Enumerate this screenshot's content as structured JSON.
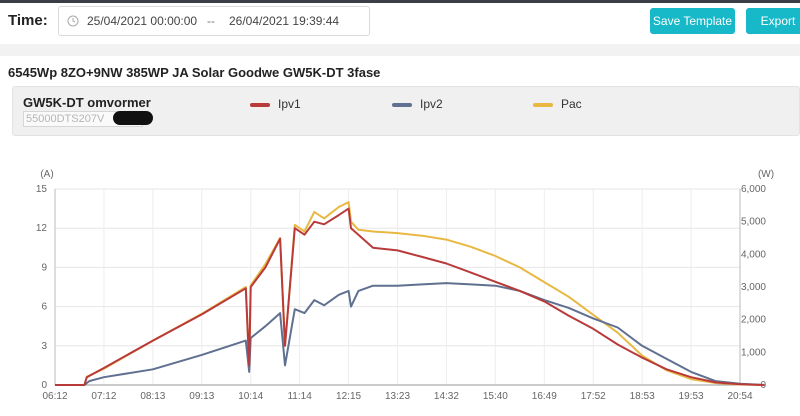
{
  "toolbar": {
    "time_label": "Time:",
    "date_start": "25/04/2021 00:00:00",
    "date_separator": "--",
    "date_end": "26/04/2021 19:39:44",
    "save_template_label": "Save Template",
    "export_label": "Export",
    "accent_color": "#17b8c8"
  },
  "plant_title": "6545Wp 8ZO+9NW 385WP JA Solar Goodwe GW5K-DT 3fase",
  "device": {
    "name": "GW5K-DT omvormer",
    "serial_visible": "55000DTS207V"
  },
  "chart_data": {
    "type": "line",
    "left_unit": "(A)",
    "right_unit": "(W)",
    "x_ticks": [
      "06:12",
      "07:12",
      "08:13",
      "09:13",
      "10:14",
      "11:14",
      "12:15",
      "13:23",
      "14:32",
      "15:40",
      "16:49",
      "17:52",
      "18:53",
      "19:53",
      "20:54"
    ],
    "y_left_ticks": [
      "0",
      "3",
      "6",
      "9",
      "12",
      "15"
    ],
    "y_right_ticks": [
      "0",
      "1,000",
      "2,000",
      "3,000",
      "4,000",
      "5,000",
      "6,000"
    ],
    "ylim_left": [
      0,
      15
    ],
    "ylim_right": [
      0,
      6000
    ],
    "grid": true,
    "legend_position": "top",
    "series": [
      {
        "name": "Ipv1",
        "axis": "left",
        "color": "#b83a3a",
        "points": [
          [
            0,
            0
          ],
          [
            0.6,
            0
          ],
          [
            0.65,
            0.6
          ],
          [
            1,
            1.3
          ],
          [
            2,
            3.4
          ],
          [
            3,
            5.4
          ],
          [
            3.9,
            7.4
          ],
          [
            3.97,
            1.5
          ],
          [
            4,
            7.5
          ],
          [
            4.3,
            9
          ],
          [
            4.6,
            11.2
          ],
          [
            4.7,
            3
          ],
          [
            4.9,
            12
          ],
          [
            5.1,
            11.5
          ],
          [
            5.3,
            12.5
          ],
          [
            5.5,
            12.3
          ],
          [
            5.8,
            13
          ],
          [
            6,
            13.5
          ],
          [
            6.05,
            12
          ],
          [
            6.2,
            11.5
          ],
          [
            6.5,
            10.5
          ],
          [
            7,
            10.3
          ],
          [
            7.5,
            9.8
          ],
          [
            8,
            9.3
          ],
          [
            8.5,
            8.6
          ],
          [
            9,
            7.9
          ],
          [
            9.5,
            7.2
          ],
          [
            10,
            6.4
          ],
          [
            10.5,
            5.3
          ],
          [
            11,
            4.3
          ],
          [
            11.5,
            3.1
          ],
          [
            12,
            2.1
          ],
          [
            12.5,
            1.2
          ],
          [
            13,
            0.6
          ],
          [
            13.5,
            0.2
          ],
          [
            14,
            0.05
          ],
          [
            14.5,
            0
          ]
        ]
      },
      {
        "name": "Ipv2",
        "axis": "left",
        "color": "#607090",
        "points": [
          [
            0,
            0
          ],
          [
            0.6,
            0
          ],
          [
            0.7,
            0.3
          ],
          [
            1,
            0.6
          ],
          [
            2,
            1.2
          ],
          [
            3,
            2.3
          ],
          [
            3.9,
            3.4
          ],
          [
            3.97,
            1
          ],
          [
            4,
            3.6
          ],
          [
            4.3,
            4.5
          ],
          [
            4.6,
            5.5
          ],
          [
            4.7,
            1.5
          ],
          [
            4.9,
            5.8
          ],
          [
            5.1,
            5.5
          ],
          [
            5.3,
            6.5
          ],
          [
            5.5,
            6.1
          ],
          [
            5.8,
            6.9
          ],
          [
            6,
            7.2
          ],
          [
            6.05,
            6
          ],
          [
            6.2,
            7.2
          ],
          [
            6.5,
            7.6
          ],
          [
            7,
            7.6
          ],
          [
            7.5,
            7.7
          ],
          [
            8,
            7.8
          ],
          [
            8.5,
            7.7
          ],
          [
            9,
            7.6
          ],
          [
            9.5,
            7.2
          ],
          [
            10,
            6.5
          ],
          [
            10.5,
            5.9
          ],
          [
            11,
            5.1
          ],
          [
            11.5,
            4.4
          ],
          [
            12,
            3
          ],
          [
            12.5,
            2
          ],
          [
            13,
            1
          ],
          [
            13.5,
            0.3
          ],
          [
            14,
            0.1
          ],
          [
            14.5,
            0
          ]
        ]
      },
      {
        "name": "Pac",
        "axis": "right",
        "color": "#e8b842",
        "points": [
          [
            0,
            0
          ],
          [
            0.6,
            0
          ],
          [
            0.65,
            250
          ],
          [
            1,
            500
          ],
          [
            2,
            1360
          ],
          [
            3,
            2180
          ],
          [
            3.9,
            3000
          ],
          [
            3.97,
            600
          ],
          [
            4,
            3050
          ],
          [
            4.3,
            3700
          ],
          [
            4.6,
            4500
          ],
          [
            4.7,
            1200
          ],
          [
            4.9,
            4900
          ],
          [
            5.1,
            4700
          ],
          [
            5.3,
            5300
          ],
          [
            5.5,
            5100
          ],
          [
            5.8,
            5450
          ],
          [
            6,
            5600
          ],
          [
            6.05,
            5000
          ],
          [
            6.2,
            4750
          ],
          [
            6.5,
            4700
          ],
          [
            7,
            4650
          ],
          [
            7.5,
            4570
          ],
          [
            8,
            4450
          ],
          [
            8.5,
            4230
          ],
          [
            9,
            3950
          ],
          [
            9.5,
            3600
          ],
          [
            10,
            3150
          ],
          [
            10.5,
            2700
          ],
          [
            11,
            2150
          ],
          [
            11.5,
            1600
          ],
          [
            12,
            900
          ],
          [
            12.5,
            450
          ],
          [
            13,
            180
          ],
          [
            13.5,
            60
          ],
          [
            14,
            15
          ],
          [
            14.5,
            0
          ]
        ]
      }
    ]
  }
}
